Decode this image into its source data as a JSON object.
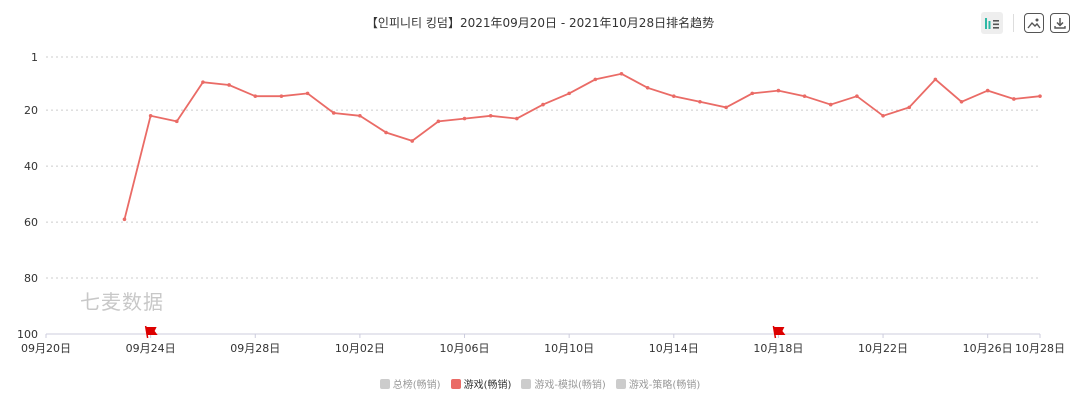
{
  "title": "【인피니티 킹덤】2021年09月20日 - 2021年10月28日排名趋势",
  "watermark": "七麦数据",
  "toolbar": {
    "chart_icon": "bar-chart-icon",
    "list_icon": "list-icon",
    "image_icon": "image-save-icon",
    "download_icon": "download-icon"
  },
  "legend": [
    {
      "label": "总榜(畅销)",
      "color": "#cccccc",
      "active": false
    },
    {
      "label": "游戏(畅销)",
      "color": "#ea6b66",
      "active": true
    },
    {
      "label": "游戏-模拟(畅销)",
      "color": "#cccccc",
      "active": false
    },
    {
      "label": "游戏-策略(畅销)",
      "color": "#cccccc",
      "active": false
    }
  ],
  "colors": {
    "line": "#ea6b66",
    "axis": "#ccccdd",
    "grid": "#cccccc",
    "flag": "#dd0000"
  },
  "chart_data": {
    "type": "line",
    "title": "【인피니티 킹덤】2021年09月20日 - 2021年10月28日排名趋势",
    "y_inverted": true,
    "ylim": [
      1,
      100
    ],
    "y_ticks": [
      "1",
      "20",
      "40",
      "60",
      "80",
      "100"
    ],
    "y_tick_values": [
      1,
      20,
      40,
      60,
      80,
      100
    ],
    "x_ticks": [
      "09月20日",
      "09月24日",
      "09月28日",
      "10月02日",
      "10月06日",
      "10月10日",
      "10月14日",
      "10月18日",
      "10月22日",
      "10月26日",
      "10月28日"
    ],
    "x_tick_days": [
      0,
      4,
      8,
      12,
      16,
      20,
      24,
      28,
      32,
      36,
      38
    ],
    "flags_days": [
      4,
      28
    ],
    "series": [
      {
        "name": "游戏(畅销)",
        "x": [
          "09月23日",
          "09月24日",
          "09月25日",
          "09月26日",
          "09月27日",
          "09月28日",
          "09月29日",
          "09月30日",
          "10月01日",
          "10月02日",
          "10月03日",
          "10月04日",
          "10月05日",
          "10月06日",
          "10月07日",
          "10月08日",
          "10月09日",
          "10月10日",
          "10月11日",
          "10月12日",
          "10月13日",
          "10月14日",
          "10月15日",
          "10月16日",
          "10月17日",
          "10月18日",
          "10月19日",
          "10月20日",
          "10月21日",
          "10月22日",
          "10月23日",
          "10月24日",
          "10月25日",
          "10月26日",
          "10月27日",
          "10月28日"
        ],
        "x_days": [
          3,
          4,
          5,
          6,
          7,
          8,
          9,
          10,
          11,
          12,
          13,
          14,
          15,
          16,
          17,
          18,
          19,
          20,
          21,
          22,
          23,
          24,
          25,
          26,
          27,
          28,
          29,
          30,
          31,
          32,
          33,
          34,
          35,
          36,
          37,
          38
        ],
        "values": [
          59,
          22,
          24,
          10,
          11,
          15,
          15,
          14,
          21,
          22,
          28,
          31,
          24,
          23,
          22,
          23,
          18,
          14,
          9,
          7,
          12,
          15,
          17,
          19,
          14,
          13,
          15,
          18,
          15,
          22,
          19,
          9,
          17,
          13,
          16,
          15
        ]
      }
    ]
  }
}
